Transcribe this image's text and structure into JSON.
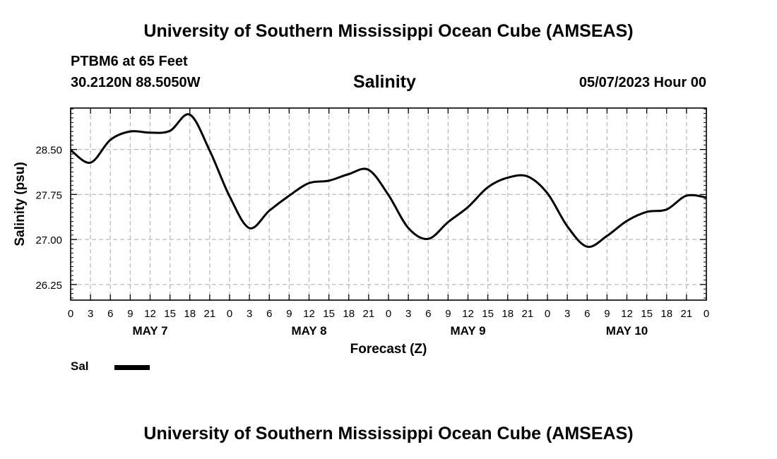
{
  "header": {
    "main_title": "University of Southern Mississippi Ocean Cube (AMSEAS)",
    "footer_title": "University of Southern Mississippi Ocean Cube (AMSEAS)",
    "station": "PTBM6 at 65 Feet",
    "coords": "30.2120N  88.5050W",
    "datetime": "05/07/2023 Hour 00"
  },
  "legend": {
    "label": "Sal"
  },
  "colors": {
    "line": "#000000",
    "grid": "#bbbbbb",
    "axis": "#000000"
  },
  "chart_data": {
    "type": "line",
    "title": "Salinity",
    "xlabel": "Forecast (Z)",
    "ylabel": "Salinity (psu)",
    "xlim": [
      0,
      96
    ],
    "ylim": [
      25.99,
      29.19
    ],
    "yticks": [
      26.25,
      27.0,
      27.75,
      28.5
    ],
    "ytick_labels": [
      "26.25",
      "27.00",
      "27.75",
      "28.50"
    ],
    "xtick_hours": [
      0,
      3,
      6,
      9,
      12,
      15,
      18,
      21,
      24,
      27,
      30,
      33,
      36,
      39,
      42,
      45,
      48,
      51,
      54,
      57,
      60,
      63,
      66,
      69,
      72,
      75,
      78,
      81,
      84,
      87,
      90,
      93,
      96
    ],
    "xtick_labels": [
      "0",
      "3",
      "6",
      "9",
      "12",
      "15",
      "18",
      "21",
      "0",
      "3",
      "6",
      "9",
      "12",
      "15",
      "18",
      "21",
      "0",
      "3",
      "6",
      "9",
      "12",
      "15",
      "18",
      "21",
      "0",
      "3",
      "6",
      "9",
      "12",
      "15",
      "18",
      "21",
      "0"
    ],
    "day_labels": [
      {
        "hour": 12,
        "label": "MAY 7"
      },
      {
        "hour": 36,
        "label": "MAY 8"
      },
      {
        "hour": 60,
        "label": "MAY 9"
      },
      {
        "hour": 84,
        "label": "MAY 10"
      }
    ],
    "series": [
      {
        "name": "Sal",
        "x": [
          0,
          3,
          6,
          9,
          12,
          15,
          18,
          21,
          24,
          27,
          30,
          33,
          36,
          39,
          42,
          45,
          48,
          51,
          54,
          57,
          60,
          63,
          66,
          69,
          72,
          75,
          78,
          81,
          84,
          87,
          90,
          93,
          96
        ],
        "values": [
          28.49,
          28.28,
          28.66,
          28.8,
          28.78,
          28.81,
          29.08,
          28.48,
          27.72,
          27.19,
          27.48,
          27.73,
          27.94,
          27.98,
          28.09,
          28.16,
          27.74,
          27.19,
          27.01,
          27.29,
          27.54,
          27.87,
          28.03,
          28.05,
          27.77,
          27.22,
          26.88,
          27.06,
          27.31,
          27.46,
          27.5,
          27.73,
          27.7
        ]
      }
    ]
  }
}
